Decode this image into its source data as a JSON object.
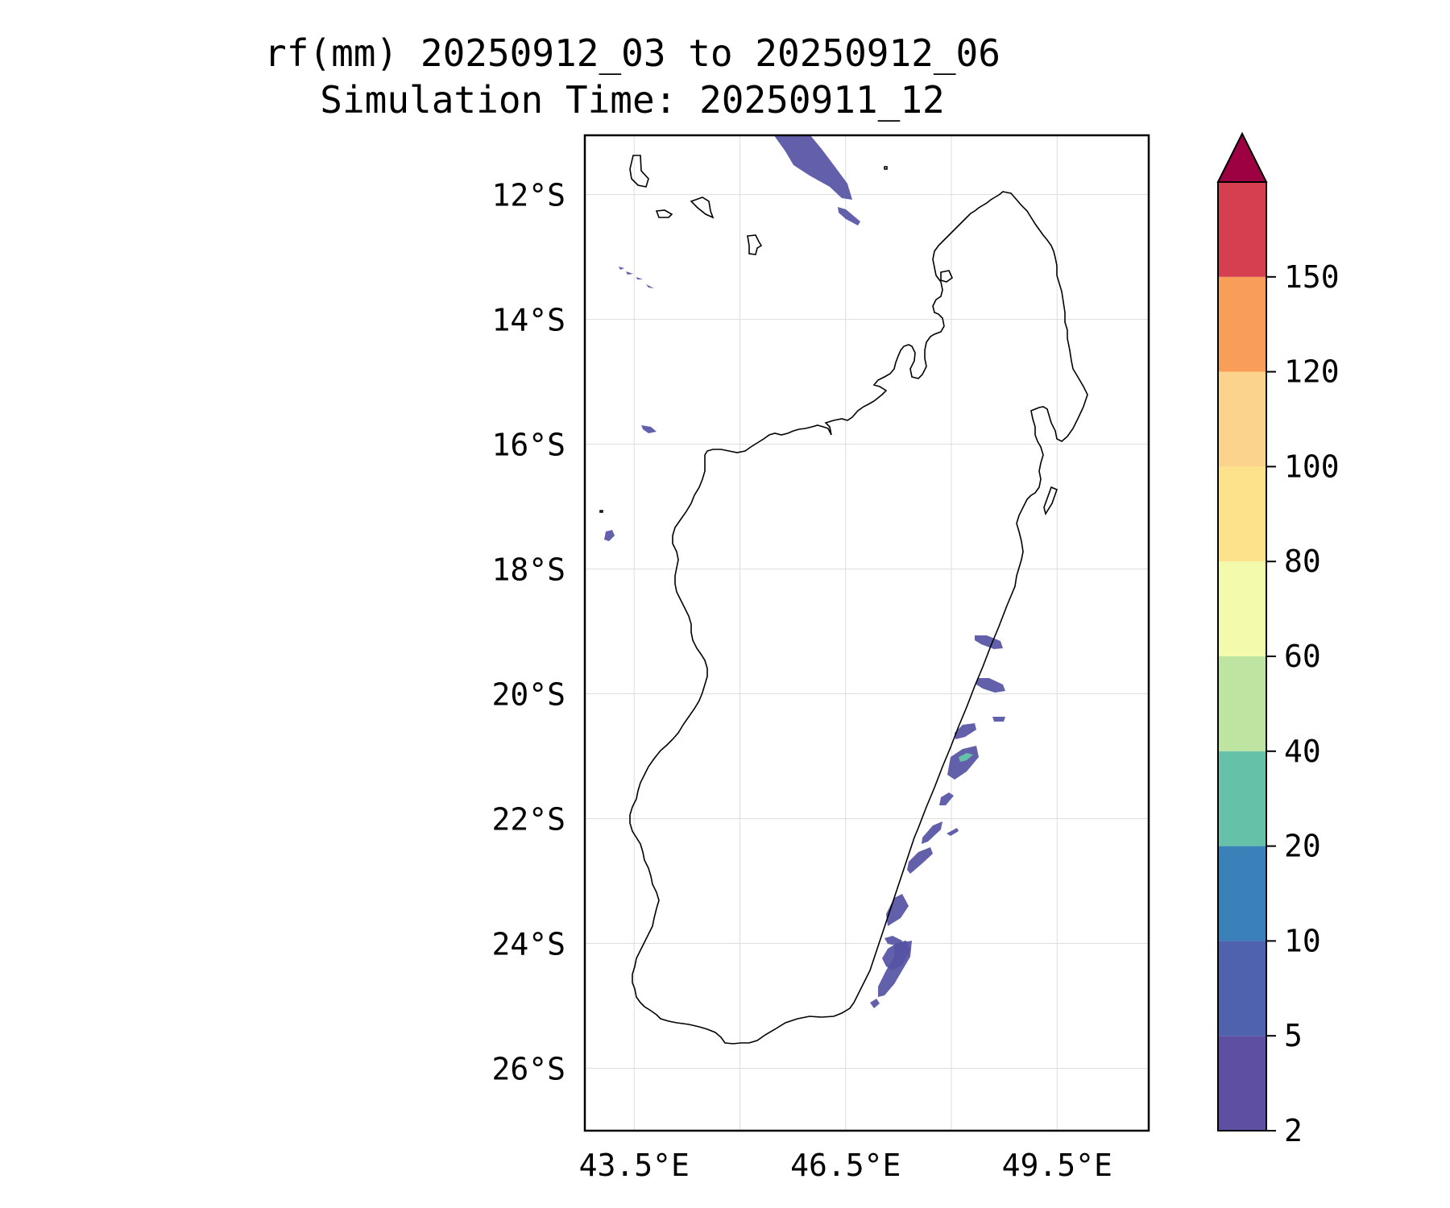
{
  "title": {
    "line1": "rf(mm) 20250912_03 to 20250912_06",
    "line2": "Simulation Time: 20250911_12"
  },
  "map": {
    "region": "Madagascar",
    "lon_range": [
      42.8,
      50.8
    ],
    "lat_range": [
      -27.0,
      -11.05
    ],
    "lat_ticks": [
      {
        "value": -12,
        "label": "12°S"
      },
      {
        "value": -14,
        "label": "14°S"
      },
      {
        "value": -16,
        "label": "16°S"
      },
      {
        "value": -18,
        "label": "18°S"
      },
      {
        "value": -20,
        "label": "20°S"
      },
      {
        "value": -22,
        "label": "22°S"
      },
      {
        "value": -24,
        "label": "24°S"
      },
      {
        "value": -26,
        "label": "26°S"
      }
    ],
    "lon_ticks": [
      {
        "value": 43.5,
        "label": "43.5°E"
      },
      {
        "value": 46.5,
        "label": "46.5°E"
      },
      {
        "value": 49.5,
        "label": "49.5°E"
      }
    ],
    "lon_grid": [
      43.5,
      45.0,
      46.5,
      48.0,
      49.5,
      51.0
    ],
    "grid": true,
    "coastline_color": "#000000",
    "grid_color": "#dddddd"
  },
  "colorbar": {
    "levels": [
      "2",
      "5",
      "10",
      "20",
      "40",
      "60",
      "80",
      "100",
      "120",
      "150"
    ],
    "colors": [
      "#5e4fa2",
      "#4e62ad",
      "#3a81ba",
      "#66c1a9",
      "#bde4a0",
      "#f4faac",
      "#fde18b",
      "#fbd38c",
      "#f99e58",
      "#d53f50"
    ],
    "extend_color": "#9e0142",
    "extend": "max"
  },
  "rain_colors": {
    "light": "#5653a4",
    "moderate": "#4e62ad",
    "peak": "#66c1a9"
  }
}
